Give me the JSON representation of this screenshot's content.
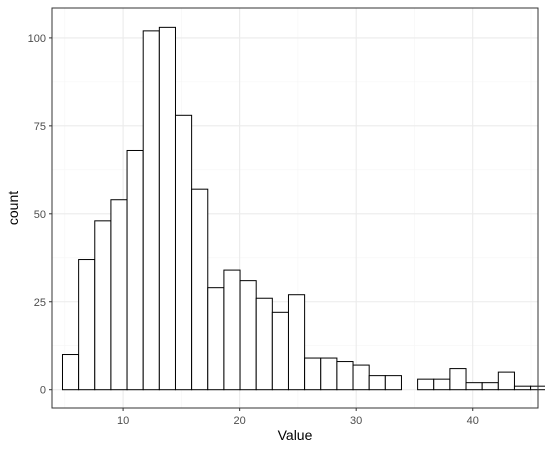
{
  "chart_data": {
    "type": "bar",
    "subtype": "histogram",
    "xlabel": "Value",
    "ylabel": "count",
    "xlim": [
      3.9,
      45.6
    ],
    "ylim": [
      -5.2,
      108.5
    ],
    "x_ticks": [
      10,
      20,
      30,
      40
    ],
    "y_ticks": [
      0,
      25,
      50,
      75,
      100
    ],
    "x_tick_labels": [
      "10",
      "20",
      "30",
      "40"
    ],
    "y_tick_labels": [
      "0",
      "25",
      "50",
      "75",
      "100"
    ],
    "grid": true,
    "bin_start": 4.8,
    "bin_width": 1.385,
    "values": [
      10,
      37,
      48,
      54,
      68,
      102,
      103,
      78,
      57,
      29,
      34,
      31,
      26,
      22,
      27,
      9,
      9,
      8,
      7,
      4,
      4,
      0,
      3,
      3,
      6,
      2,
      2,
      5,
      1,
      1
    ],
    "colors": {
      "bar_fill": "#ffffff",
      "bar_stroke": "#000000",
      "grid_major": "#ebebeb",
      "grid_minor": "#f5f5f5",
      "panel_border": "#333333",
      "tick_text": "#4d4d4d"
    }
  }
}
